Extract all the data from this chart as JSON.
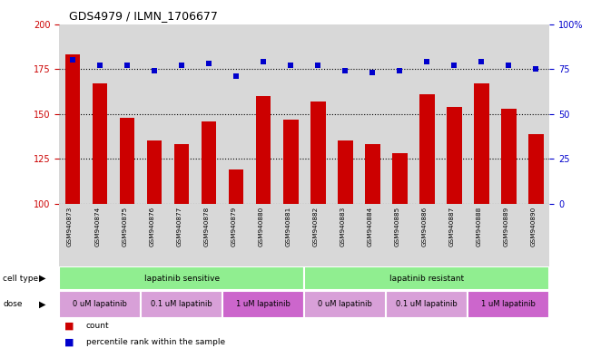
{
  "title": "GDS4979 / ILMN_1706677",
  "samples": [
    "GSM940873",
    "GSM940874",
    "GSM940875",
    "GSM940876",
    "GSM940877",
    "GSM940878",
    "GSM940879",
    "GSM940880",
    "GSM940881",
    "GSM940882",
    "GSM940883",
    "GSM940884",
    "GSM940885",
    "GSM940886",
    "GSM940887",
    "GSM940888",
    "GSM940889",
    "GSM940890"
  ],
  "counts": [
    183,
    167,
    148,
    135,
    133,
    146,
    119,
    160,
    147,
    157,
    135,
    133,
    128,
    161,
    154,
    167,
    153,
    139
  ],
  "percentiles": [
    80,
    77,
    77,
    74,
    77,
    78,
    71,
    79,
    77,
    77,
    74,
    73,
    74,
    79,
    77,
    79,
    77,
    75
  ],
  "ylim_left": [
    100,
    200
  ],
  "ylim_right": [
    0,
    100
  ],
  "yticks_left": [
    100,
    125,
    150,
    175,
    200
  ],
  "yticks_right": [
    0,
    25,
    50,
    75,
    100
  ],
  "bar_color": "#cc0000",
  "dot_color": "#0000cc",
  "bg_color": "#d8d8d8",
  "cell_type_groups": [
    {
      "label": "lapatinib sensitive",
      "start": 0,
      "end": 9,
      "color": "#90ee90"
    },
    {
      "label": "lapatinib resistant",
      "start": 9,
      "end": 18,
      "color": "#90ee90"
    }
  ],
  "dose_groups": [
    {
      "label": "0 uM lapatinib",
      "start": 0,
      "end": 3,
      "color": "#d8a0d8"
    },
    {
      "label": "0.1 uM lapatinib",
      "start": 3,
      "end": 6,
      "color": "#d8a0d8"
    },
    {
      "label": "1 uM lapatinib",
      "start": 6,
      "end": 9,
      "color": "#cc66cc"
    },
    {
      "label": "0 uM lapatinib",
      "start": 9,
      "end": 12,
      "color": "#d8a0d8"
    },
    {
      "label": "0.1 uM lapatinib",
      "start": 12,
      "end": 15,
      "color": "#d8a0d8"
    },
    {
      "label": "1 uM lapatinib",
      "start": 15,
      "end": 18,
      "color": "#cc66cc"
    }
  ]
}
